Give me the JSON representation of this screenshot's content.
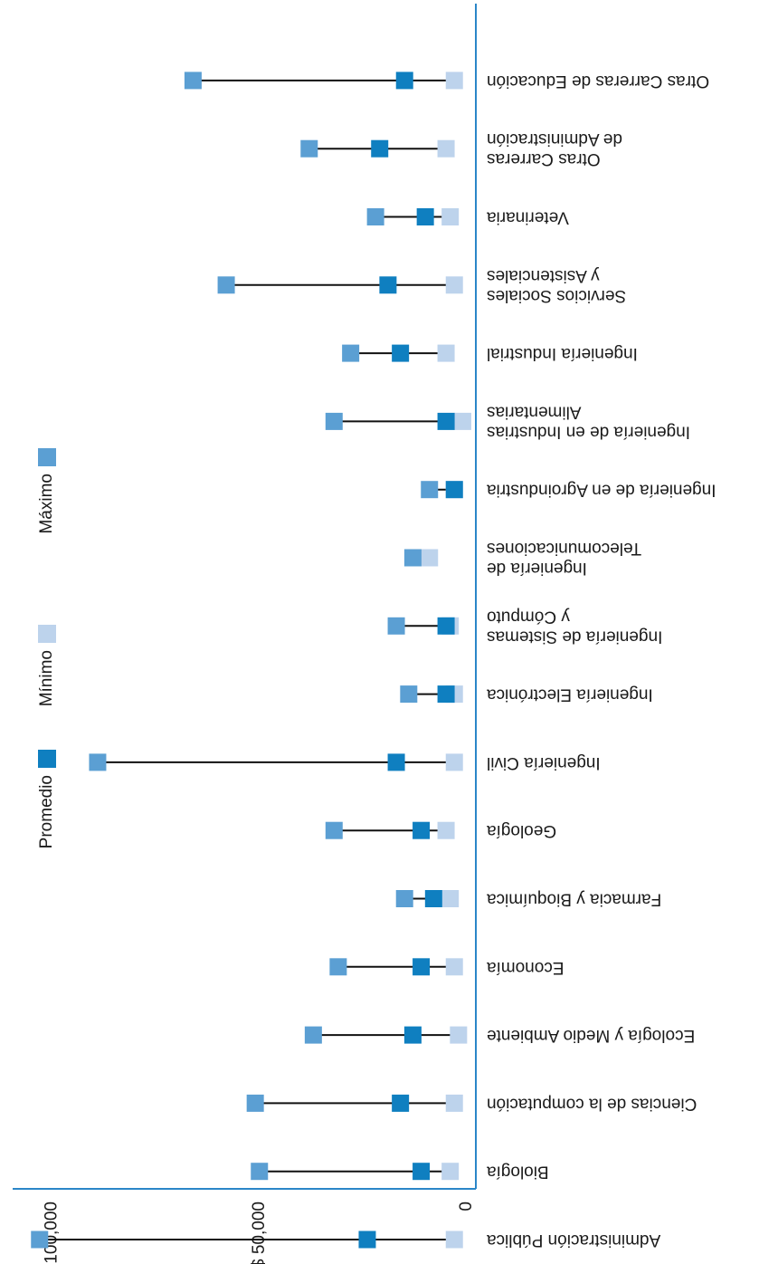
{
  "chart_data": {
    "type": "range-dot",
    "categories": [
      "Administración Pública",
      "Biología",
      "Ciencias de la computación",
      "Ecología y Medio Ambiente",
      "Economía",
      "Farmacia y Bioquímica",
      "Geología",
      "Ingeniería Civil",
      "Ingeniería Electrónica",
      "Ingeniería de Sistemas y Cómputo",
      "Ingeniería de Telecomunicaciones",
      "Ingeniería de en Agroindustria",
      "Ingeniería de en Industrias Alimentarias",
      "Ingeniería Industrial",
      "Servicios Sociales y Asistenciales",
      "Veterinaria",
      "Otras Carreras de Administración",
      "Otras Carreras de Educación"
    ],
    "category_lines": [
      [
        "Administración Pública"
      ],
      [
        "Biología"
      ],
      [
        "Ciencias de la computación"
      ],
      [
        "Ecología y Medio Ambiente"
      ],
      [
        "Economía"
      ],
      [
        "Farmacia y Bioquímica"
      ],
      [
        "Geología"
      ],
      [
        "Ingeniería Civil"
      ],
      [
        "Ingeniería Electrónica"
      ],
      [
        "Ingeniería de Sistemas",
        "y Cómputo"
      ],
      [
        "Ingeniería de",
        "Telecomunicaciones"
      ],
      [
        "Ingeniería de en Agroindustria"
      ],
      [
        "Ingeniería de en Industrias",
        "Alimentarias"
      ],
      [
        "Ingeniería Industrial"
      ],
      [
        "Servicios Sociales",
        "y Asistenciales"
      ],
      [
        "Veterinaria"
      ],
      [
        "Otras Carreras",
        "de Administración"
      ],
      [
        "Otras Carreras de Educación"
      ]
    ],
    "series": [
      {
        "name": "Promedio",
        "values": [
          24000,
          11000,
          16000,
          13000,
          11000,
          8000,
          11000,
          17000,
          5000,
          5000,
          null,
          3000,
          5000,
          16000,
          19000,
          10000,
          21000,
          15000
        ]
      },
      {
        "name": "Mínimo",
        "values": [
          3000,
          4000,
          3000,
          2000,
          3000,
          4000,
          5000,
          3000,
          3000,
          4000,
          9000,
          3000,
          1000,
          5000,
          3000,
          4000,
          5000,
          3000
        ]
      },
      {
        "name": "Máximo",
        "values": [
          103000,
          50000,
          51000,
          37000,
          31000,
          15000,
          32000,
          89000,
          14000,
          17000,
          13000,
          9000,
          32000,
          28000,
          58000,
          22000,
          38000,
          66000
        ]
      }
    ],
    "value_axis": {
      "ticks": [
        0,
        50000,
        100000
      ],
      "tick_labels": [
        "0",
        "$ 50,000",
        "$ 100,000"
      ],
      "range": [
        0,
        106000
      ]
    },
    "colors": {
      "Promedio": "#0f7fc0",
      "Mínimo": "#bdd3ec",
      "Máximo": "#5b9fd3",
      "axis": "#2b86c8",
      "range_line": "#111111"
    },
    "legend": {
      "placement": "left",
      "items": [
        "Promedio",
        "Mínimo",
        "Máximo"
      ]
    },
    "orientation": "rotated 180 degrees",
    "grid": false
  }
}
